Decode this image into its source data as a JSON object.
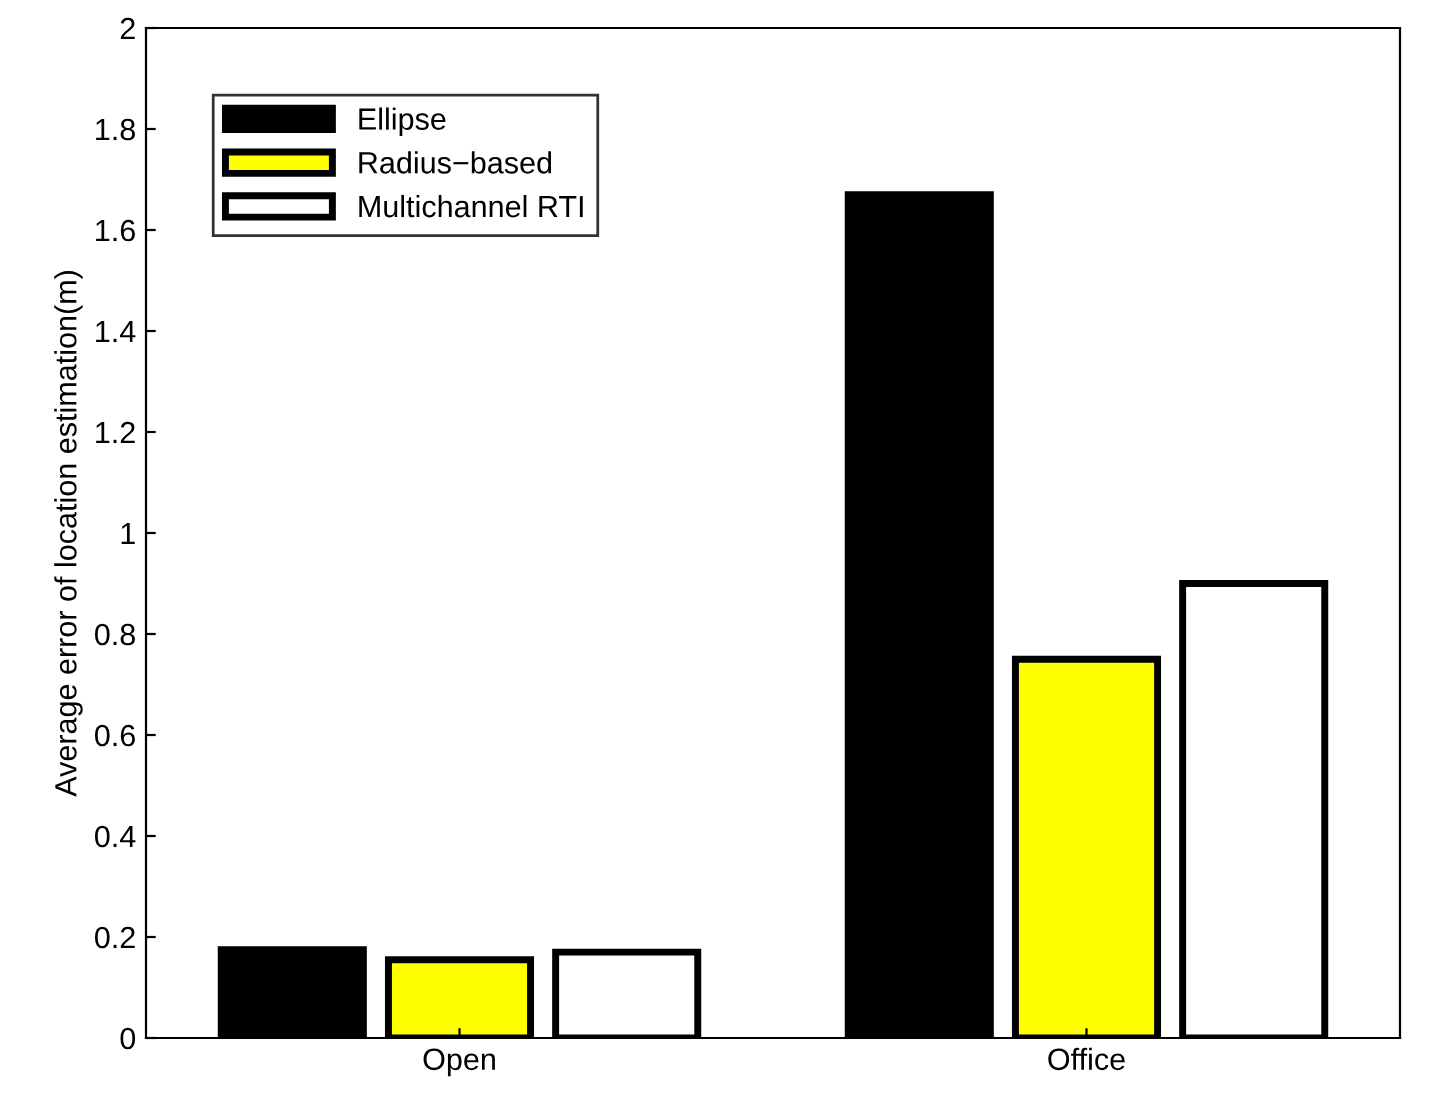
{
  "chart_data": {
    "type": "bar",
    "ylabel": "Average error of location estimation(m)",
    "categories": [
      "Open",
      "Office"
    ],
    "series": [
      {
        "name": "Ellipse",
        "color": "#000000",
        "values": [
          0.175,
          1.67
        ]
      },
      {
        "name": "Radius−based",
        "color": "#ffff00",
        "values": [
          0.155,
          0.75
        ]
      },
      {
        "name": "Multichannel RTI",
        "color": "#ffffff",
        "values": [
          0.17,
          0.9
        ]
      }
    ],
    "ylim": [
      0,
      2
    ],
    "yticks": [
      0,
      0.2,
      0.4,
      0.6,
      0.8,
      1,
      1.2,
      1.4,
      1.6,
      1.8,
      2
    ],
    "grid": false,
    "legend": "top left"
  }
}
